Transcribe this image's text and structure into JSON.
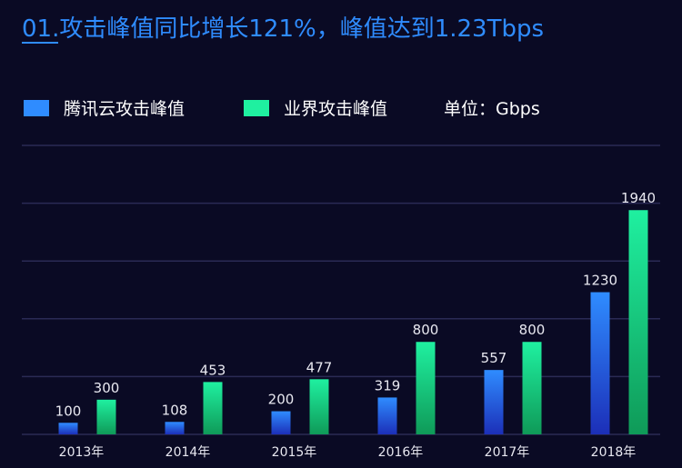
{
  "chart_data": {
    "type": "bar",
    "title_prefix": "01.",
    "title": "攻击峰值同比增长121%，峰值达到1.23Tbps",
    "unit_label": "单位：Gbps",
    "categories": [
      "2013年",
      "2014年",
      "2015年",
      "2016年",
      "2017年",
      "2018年"
    ],
    "series": [
      {
        "name": "腾讯云攻击峰值",
        "values": [
          100,
          108,
          200,
          319,
          557,
          1230
        ],
        "color_top": "#2f8cff",
        "color_bottom": "#1c2fb8"
      },
      {
        "name": "业界攻击峰值",
        "values": [
          300,
          453,
          477,
          800,
          800,
          1940
        ],
        "color_top": "#1ff0a0",
        "color_bottom": "#0f9a58"
      }
    ],
    "ylim": [
      0,
      2500
    ],
    "grid": true,
    "legend_position": "top-left"
  },
  "colors": {
    "background": "#0a0a24",
    "grid": "#2a2a55",
    "title": "#2f8cff"
  }
}
